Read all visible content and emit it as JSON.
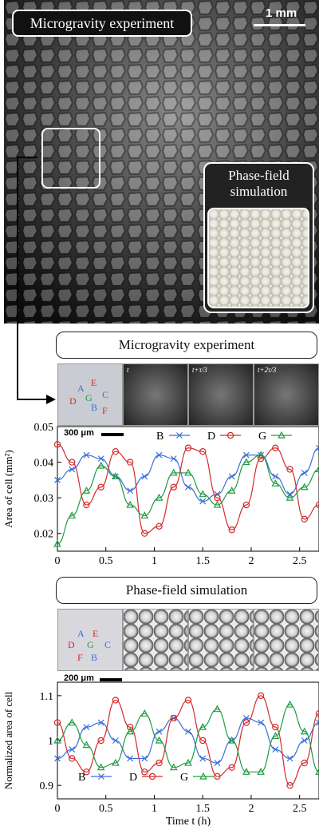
{
  "top_image": {
    "title": "Microgravity experiment",
    "scale_label": "1 mm",
    "inset_label_line1": "Phase-field",
    "inset_label_line2": "simulation"
  },
  "experiment_section": {
    "title": "Microgravity experiment",
    "cell_labels": [
      "A",
      "B",
      "C",
      "D",
      "E",
      "F",
      "G"
    ],
    "frame_labels": [
      "t",
      "t+τ/3",
      "t+2τ/3"
    ],
    "scale_label": "300 μm"
  },
  "simulation_section": {
    "title": "Phase-field simulation",
    "cell_labels": [
      "A",
      "B",
      "C",
      "D",
      "E",
      "F",
      "G"
    ],
    "scale_label": "200 μm"
  },
  "colors": {
    "B": "#3a6fd8",
    "D": "#d42a2a",
    "G": "#1e9a40"
  },
  "chart_data": [
    {
      "type": "scatter",
      "ylabel": "Area of cell (mm²)",
      "xlim": [
        0,
        2.7
      ],
      "ylim": [
        0.015,
        0.05
      ],
      "xticks": [
        "0",
        "0.5",
        "1",
        "1.5",
        "2",
        "2.5"
      ],
      "yticks": [
        "0.02",
        "0.03",
        "0.04",
        "0.05"
      ],
      "legend": [
        "B",
        "D",
        "G"
      ],
      "series": [
        {
          "name": "B",
          "x": [
            0,
            0.15,
            0.3,
            0.45,
            0.6,
            0.75,
            0.9,
            1.05,
            1.2,
            1.35,
            1.5,
            1.65,
            1.8,
            1.95,
            2.1,
            2.25,
            2.4,
            2.55,
            2.7
          ],
          "y": [
            0.035,
            0.038,
            0.042,
            0.041,
            0.036,
            0.032,
            0.036,
            0.042,
            0.041,
            0.033,
            0.029,
            0.031,
            0.036,
            0.042,
            0.042,
            0.036,
            0.031,
            0.037,
            0.044
          ]
        },
        {
          "name": "D",
          "x": [
            0,
            0.15,
            0.3,
            0.45,
            0.6,
            0.75,
            0.9,
            1.05,
            1.2,
            1.35,
            1.5,
            1.65,
            1.8,
            1.95,
            2.1,
            2.25,
            2.4,
            2.55,
            2.7
          ],
          "y": [
            0.045,
            0.04,
            0.028,
            0.033,
            0.043,
            0.04,
            0.02,
            0.022,
            0.033,
            0.044,
            0.043,
            0.03,
            0.021,
            0.028,
            0.041,
            0.044,
            0.038,
            0.024,
            0.028
          ]
        },
        {
          "name": "G",
          "x": [
            0,
            0.15,
            0.3,
            0.45,
            0.6,
            0.75,
            0.9,
            1.05,
            1.2,
            1.35,
            1.5,
            1.65,
            1.8,
            1.95,
            2.1,
            2.25,
            2.4,
            2.55,
            2.7
          ],
          "y": [
            0.017,
            0.025,
            0.032,
            0.039,
            0.036,
            0.028,
            0.025,
            0.03,
            0.037,
            0.037,
            0.031,
            0.028,
            0.032,
            0.04,
            0.042,
            0.034,
            0.03,
            0.033,
            0.038
          ]
        }
      ]
    },
    {
      "type": "scatter",
      "ylabel": "Normalized area of cell",
      "xlabel": "Time t (h)",
      "xlim": [
        0,
        2.7
      ],
      "ylim": [
        0.87,
        1.13
      ],
      "xticks": [
        "0",
        "0.5",
        "1",
        "1.5",
        "2",
        "2.5"
      ],
      "yticks": [
        "0.9",
        "1",
        "1.1"
      ],
      "legend": [
        "B",
        "D",
        "G"
      ],
      "series": [
        {
          "name": "B",
          "x": [
            0,
            0.15,
            0.3,
            0.45,
            0.6,
            0.75,
            0.9,
            1.05,
            1.2,
            1.35,
            1.5,
            1.65,
            1.8,
            1.95,
            2.1,
            2.25,
            2.4,
            2.55,
            2.7
          ],
          "y": [
            0.96,
            0.98,
            1.03,
            1.04,
            1.0,
            0.96,
            0.96,
            1.02,
            1.05,
            1.02,
            0.96,
            0.95,
            1.0,
            1.05,
            1.04,
            0.98,
            0.96,
            1.0,
            1.04
          ]
        },
        {
          "name": "D",
          "x": [
            0,
            0.15,
            0.3,
            0.45,
            0.6,
            0.75,
            0.9,
            1.05,
            1.2,
            1.35,
            1.5,
            1.65,
            1.8,
            1.95,
            2.1,
            2.25,
            2.4,
            2.55,
            2.7
          ],
          "y": [
            1.04,
            0.96,
            0.93,
            1.0,
            1.09,
            1.03,
            0.93,
            0.95,
            1.05,
            1.09,
            1.0,
            0.92,
            0.94,
            1.04,
            1.1,
            1.03,
            0.9,
            0.95,
            1.06
          ]
        },
        {
          "name": "G",
          "x": [
            0,
            0.15,
            0.3,
            0.45,
            0.6,
            0.75,
            0.9,
            1.05,
            1.2,
            1.35,
            1.5,
            1.65,
            1.8,
            1.95,
            2.1,
            2.25,
            2.4,
            2.55,
            2.7
          ],
          "y": [
            1.0,
            1.04,
            0.99,
            0.94,
            0.95,
            1.02,
            1.06,
            1.0,
            0.94,
            0.95,
            1.03,
            1.07,
            1.0,
            0.93,
            0.93,
            1.01,
            1.08,
            1.02,
            0.93
          ]
        }
      ]
    }
  ]
}
